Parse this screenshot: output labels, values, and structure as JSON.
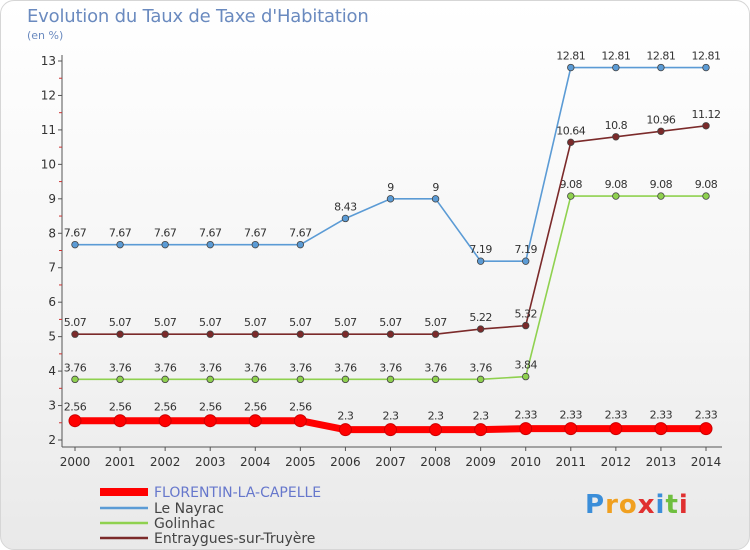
{
  "chart_data": {
    "type": "line",
    "title": "Evolution du Taux de Taxe d'Habitation",
    "unit_label": "(en %)",
    "x": [
      2000,
      2001,
      2002,
      2003,
      2004,
      2005,
      2006,
      2007,
      2008,
      2009,
      2010,
      2011,
      2012,
      2013,
      2014
    ],
    "x_tick_labels": [
      "2000",
      "2001",
      "2002",
      "2003",
      "2004",
      "2005",
      "2006",
      "2007",
      "2008",
      "2009",
      "2010",
      "2011",
      "2012",
      "2013",
      "2014"
    ],
    "ylim": [
      2,
      13
    ],
    "y_ticks": [
      2,
      3,
      4,
      5,
      6,
      7,
      8,
      9,
      10,
      11,
      12,
      13
    ],
    "grid": false,
    "legend_position": "bottom-left",
    "series": [
      {
        "name": "FLORENTIN-LA-CAPELLE",
        "color": "#ff0000",
        "values": [
          2.56,
          2.56,
          2.56,
          2.56,
          2.56,
          2.56,
          2.3,
          2.3,
          2.3,
          2.3,
          2.33,
          2.33,
          2.33,
          2.33,
          2.33
        ],
        "labels": [
          "2.56",
          "2.56",
          "2.56",
          "2.56",
          "2.56",
          "2.56",
          "2.3",
          "2.3",
          "2.3",
          "2.3",
          "2.33",
          "2.33",
          "2.33",
          "2.33",
          "2.33"
        ]
      },
      {
        "name": "Le Nayrac",
        "color": "#5b9bd5",
        "values": [
          7.67,
          7.67,
          7.67,
          7.67,
          7.67,
          7.67,
          8.43,
          9,
          9,
          7.19,
          7.19,
          12.81,
          12.81,
          12.81,
          12.81
        ],
        "labels": [
          "7.67",
          "7.67",
          "7.67",
          "7.67",
          "7.67",
          "7.67",
          "8.43",
          "9",
          "9",
          "7.19",
          "7.19",
          "12.81",
          "12.81",
          "12.81",
          "12.81"
        ]
      },
      {
        "name": "Golinhac",
        "color": "#8fd14f",
        "values": [
          3.76,
          3.76,
          3.76,
          3.76,
          3.76,
          3.76,
          3.76,
          3.76,
          3.76,
          3.76,
          3.84,
          9.08,
          9.08,
          9.08,
          9.08
        ],
        "labels": [
          "3.76",
          "3.76",
          "3.76",
          "3.76",
          "3.76",
          "3.76",
          "3.76",
          "3.76",
          "3.76",
          "3.76",
          "3.84",
          "9.08",
          "9.08",
          "9.08",
          "9.08"
        ]
      },
      {
        "name": "Entraygues-sur-Truyère",
        "color": "#7b2a2a",
        "values": [
          5.07,
          5.07,
          5.07,
          5.07,
          5.07,
          5.07,
          5.07,
          5.07,
          5.07,
          5.22,
          5.32,
          10.64,
          10.8,
          10.96,
          11.12
        ],
        "labels": [
          "5.07",
          "5.07",
          "5.07",
          "5.07",
          "5.07",
          "5.07",
          "5.07",
          "5.07",
          "5.07",
          "5.22",
          "5.32",
          "10.64",
          "10.8",
          "10.96",
          "11.12"
        ]
      }
    ]
  },
  "logo": {
    "text": "Proxiti",
    "letters": [
      {
        "ch": "P",
        "color": "#3b8ed9"
      },
      {
        "ch": "r",
        "color": "#f0a020"
      },
      {
        "ch": "o",
        "color": "#f0a020"
      },
      {
        "ch": "x",
        "color": "#e03030"
      },
      {
        "ch": "i",
        "color": "#3b8ed9"
      },
      {
        "ch": "t",
        "color": "#6fbf3f"
      },
      {
        "ch": "i",
        "color": "#e03030"
      }
    ]
  }
}
